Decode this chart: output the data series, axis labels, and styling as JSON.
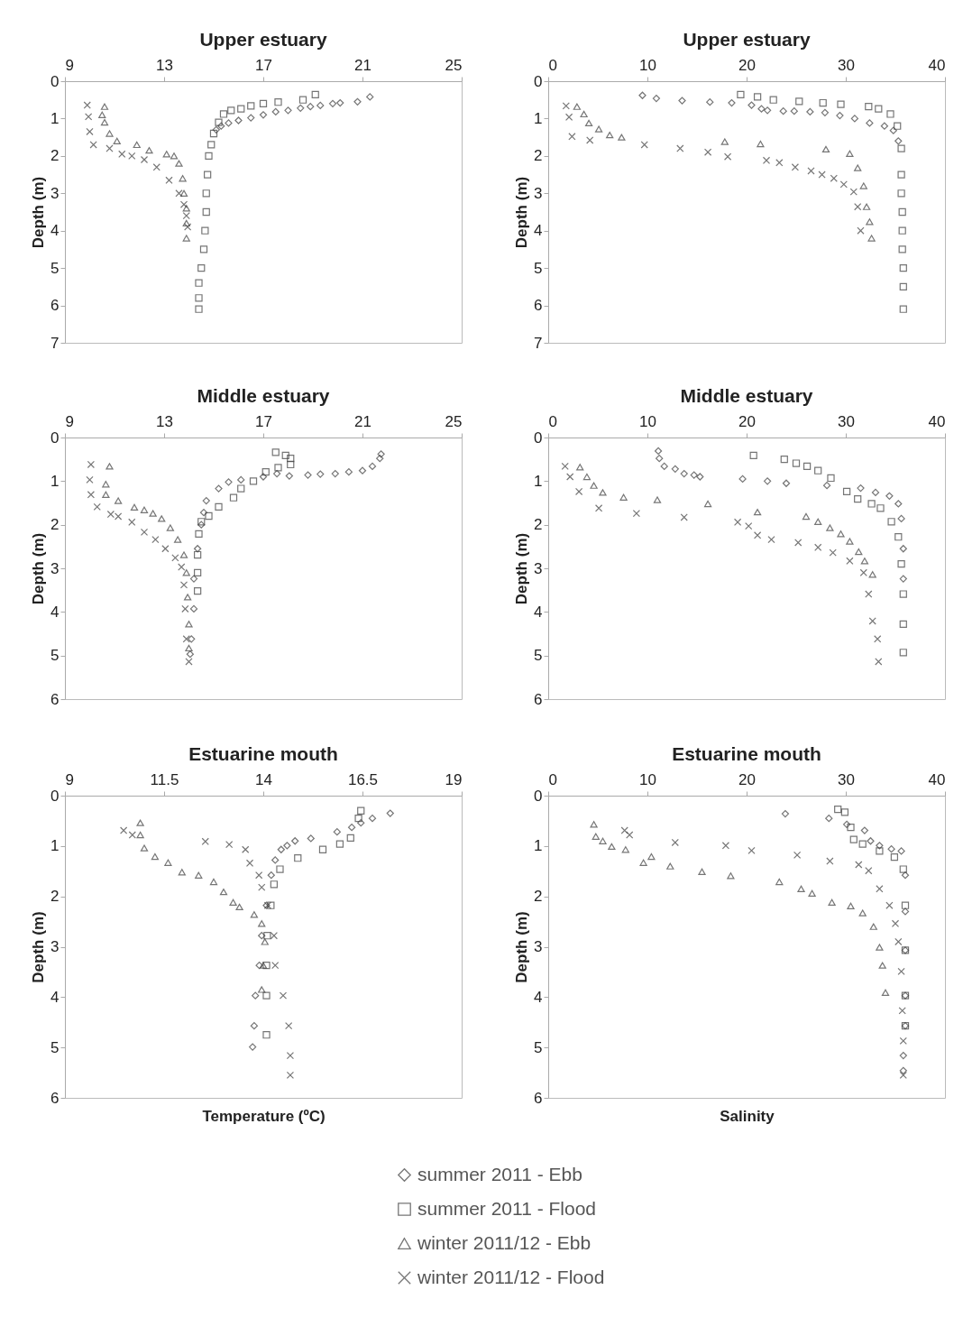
{
  "chart_data": [
    {
      "type": "scatter",
      "title": "Upper estuary",
      "ylabel": "Depth (m)",
      "xlim": [
        9,
        25
      ],
      "xticks": [
        9,
        13,
        17,
        21,
        25
      ],
      "ylim": [
        7,
        0
      ],
      "yticks": [
        0,
        1,
        2,
        3,
        4,
        5,
        6,
        7
      ],
      "series": [
        {
          "color": "#3c3c3c",
          "marker": "diamond",
          "x": [
            21.3,
            20.8,
            20.1,
            19.8,
            19.3,
            18.9,
            18.5,
            18.0,
            17.5,
            17.0,
            16.5,
            16.0,
            15.6,
            15.3,
            15.1
          ],
          "values": [
            0.42,
            0.55,
            0.58,
            0.6,
            0.65,
            0.68,
            0.72,
            0.78,
            0.82,
            0.9,
            0.98,
            1.05,
            1.12,
            1.2,
            1.3
          ]
        },
        {
          "color": "#3c3c3c",
          "marker": "square",
          "x": [
            19.1,
            18.6,
            17.6,
            17.0,
            16.5,
            16.1,
            15.7,
            15.4,
            15.2,
            15.0,
            14.9,
            14.8,
            14.75,
            14.7,
            14.7,
            14.65,
            14.6,
            14.5,
            14.4,
            14.4,
            14.4
          ],
          "values": [
            0.36,
            0.5,
            0.56,
            0.6,
            0.66,
            0.74,
            0.78,
            0.88,
            1.1,
            1.4,
            1.7,
            2.0,
            2.5,
            3.0,
            3.5,
            4.0,
            4.5,
            5.0,
            5.4,
            5.8,
            6.1
          ]
        },
        {
          "color": "#3c3c3c",
          "marker": "triangle",
          "x": [
            10.6,
            10.5,
            10.6,
            10.8,
            11.1,
            11.9,
            12.4,
            13.1,
            13.4,
            13.6,
            13.75,
            13.8,
            13.9,
            13.9,
            13.9
          ],
          "values": [
            0.68,
            0.9,
            1.1,
            1.4,
            1.6,
            1.7,
            1.85,
            1.95,
            2.0,
            2.2,
            2.6,
            3.0,
            3.4,
            3.8,
            4.2
          ]
        },
        {
          "color": "#3c3c3c",
          "marker": "cross",
          "x": [
            9.9,
            9.95,
            10.0,
            10.15,
            10.8,
            11.3,
            11.7,
            12.2,
            12.7,
            13.2,
            13.6,
            13.8,
            13.9,
            13.95
          ],
          "values": [
            0.64,
            0.95,
            1.35,
            1.7,
            1.8,
            1.95,
            2.0,
            2.1,
            2.3,
            2.65,
            3.0,
            3.3,
            3.6,
            3.9
          ]
        }
      ]
    },
    {
      "type": "scatter",
      "title": "Upper estuary",
      "ylabel": "Depth (m)",
      "xlim": [
        0,
        40
      ],
      "xticks": [
        0,
        10,
        20,
        30,
        40
      ],
      "ylim": [
        7,
        0
      ],
      "yticks": [
        0,
        1,
        2,
        3,
        4,
        5,
        6,
        7
      ],
      "series": [
        {
          "color": "#3c3c3c",
          "marker": "diamond",
          "x": [
            9.5,
            10.9,
            13.5,
            16.3,
            18.5,
            20.5,
            21.5,
            22.1,
            23.7,
            24.8,
            26.4,
            27.9,
            29.4,
            30.9,
            32.4,
            33.9,
            34.8,
            35.3
          ],
          "values": [
            0.38,
            0.46,
            0.52,
            0.56,
            0.58,
            0.64,
            0.74,
            0.78,
            0.8,
            0.8,
            0.82,
            0.84,
            0.92,
            1.0,
            1.12,
            1.2,
            1.32,
            1.6
          ]
        },
        {
          "color": "#3c3c3c",
          "marker": "square",
          "x": [
            19.4,
            21.1,
            22.7,
            25.3,
            27.7,
            29.5,
            32.3,
            33.3,
            34.5,
            35.2,
            35.6,
            35.6,
            35.6,
            35.7,
            35.7,
            35.7,
            35.8,
            35.8,
            35.8
          ],
          "values": [
            0.36,
            0.42,
            0.5,
            0.54,
            0.58,
            0.62,
            0.68,
            0.74,
            0.88,
            1.2,
            1.8,
            2.5,
            3.0,
            3.5,
            4.0,
            4.5,
            5.0,
            5.5,
            6.1
          ]
        },
        {
          "color": "#3c3c3c",
          "marker": "triangle",
          "x": [
            2.9,
            3.6,
            4.1,
            5.1,
            6.2,
            7.4,
            17.8,
            21.4,
            28.0,
            30.4,
            31.2,
            31.8,
            32.1,
            32.4,
            32.6
          ],
          "values": [
            0.68,
            0.88,
            1.12,
            1.28,
            1.44,
            1.5,
            1.62,
            1.68,
            1.82,
            1.94,
            2.32,
            2.8,
            3.36,
            3.76,
            4.2
          ]
        },
        {
          "color": "#3c3c3c",
          "marker": "cross",
          "x": [
            1.8,
            2.1,
            2.4,
            4.2,
            9.7,
            13.3,
            16.1,
            18.1,
            22.0,
            23.3,
            24.9,
            26.5,
            27.6,
            28.8,
            29.8,
            30.8,
            31.2,
            31.5
          ],
          "values": [
            0.66,
            0.96,
            1.48,
            1.58,
            1.7,
            1.8,
            1.9,
            2.02,
            2.12,
            2.18,
            2.3,
            2.4,
            2.5,
            2.6,
            2.76,
            2.96,
            3.36,
            4.0
          ]
        }
      ]
    },
    {
      "type": "scatter",
      "title": "Middle estuary",
      "ylabel": "Depth (m)",
      "xlim": [
        9,
        25
      ],
      "xticks": [
        9,
        13,
        17,
        21,
        25
      ],
      "ylim": [
        6,
        0
      ],
      "yticks": [
        0,
        1,
        2,
        3,
        4,
        5,
        6
      ],
      "series": [
        {
          "color": "#3c3c3c",
          "marker": "diamond",
          "x": [
            21.75,
            21.7,
            21.4,
            21.0,
            20.45,
            19.9,
            19.3,
            18.8,
            18.05,
            17.55,
            17.0,
            16.1,
            15.6,
            15.2,
            14.7,
            14.6,
            14.5,
            14.35,
            14.2,
            14.2,
            14.1,
            14.05
          ],
          "values": [
            0.38,
            0.48,
            0.66,
            0.76,
            0.79,
            0.83,
            0.84,
            0.86,
            0.88,
            0.83,
            0.9,
            0.97,
            1.02,
            1.17,
            1.45,
            1.72,
            2.0,
            2.55,
            3.24,
            3.93,
            4.62,
            4.97
          ]
        },
        {
          "color": "#3c3c3c",
          "marker": "square",
          "x": [
            17.5,
            17.9,
            18.1,
            18.1,
            17.6,
            17.1,
            16.6,
            16.1,
            15.8,
            15.2,
            14.8,
            14.5,
            14.4,
            14.35,
            14.35,
            14.35
          ],
          "values": [
            0.34,
            0.41,
            0.48,
            0.62,
            0.69,
            0.79,
            1.0,
            1.17,
            1.38,
            1.59,
            1.8,
            1.93,
            2.21,
            2.69,
            3.1,
            3.52
          ]
        },
        {
          "color": "#3c3c3c",
          "marker": "triangle",
          "x": [
            10.8,
            10.65,
            10.65,
            11.15,
            11.8,
            12.2,
            12.55,
            12.9,
            13.25,
            13.55,
            13.8,
            13.9,
            13.95,
            14.0,
            14.0
          ],
          "values": [
            0.66,
            1.07,
            1.31,
            1.45,
            1.6,
            1.66,
            1.74,
            1.86,
            2.07,
            2.34,
            2.69,
            3.1,
            3.66,
            4.28,
            4.83
          ]
        },
        {
          "color": "#3c3c3c",
          "marker": "cross",
          "x": [
            10.05,
            10.0,
            10.05,
            10.3,
            10.85,
            11.15,
            11.7,
            12.2,
            12.65,
            13.05,
            13.45,
            13.7,
            13.8,
            13.85,
            13.9,
            14.0
          ],
          "values": [
            0.62,
            0.97,
            1.31,
            1.59,
            1.76,
            1.81,
            1.94,
            2.17,
            2.34,
            2.55,
            2.76,
            2.97,
            3.38,
            3.93,
            4.62,
            5.14
          ]
        }
      ]
    },
    {
      "type": "scatter",
      "title": "Middle estuary",
      "ylabel": "Depth (m)",
      "xlim": [
        0,
        40
      ],
      "xticks": [
        0,
        10,
        20,
        30,
        40
      ],
      "ylim": [
        6,
        0
      ],
      "yticks": [
        0,
        1,
        2,
        3,
        4,
        5,
        6
      ],
      "series": [
        {
          "color": "#3c3c3c",
          "marker": "diamond",
          "x": [
            11.1,
            11.2,
            11.7,
            12.8,
            13.7,
            14.7,
            15.3,
            19.6,
            22.1,
            24.0,
            28.1,
            31.5,
            33.0,
            34.4,
            35.3,
            35.6,
            35.8,
            35.8
          ],
          "values": [
            0.31,
            0.48,
            0.66,
            0.72,
            0.83,
            0.86,
            0.9,
            0.95,
            1.0,
            1.05,
            1.1,
            1.16,
            1.26,
            1.34,
            1.52,
            1.86,
            2.55,
            3.24
          ]
        },
        {
          "color": "#3c3c3c",
          "marker": "square",
          "x": [
            20.7,
            23.8,
            25.0,
            26.1,
            27.2,
            28.5,
            30.1,
            31.2,
            32.6,
            33.5,
            34.6,
            35.3,
            35.6,
            35.8,
            35.8,
            35.8
          ],
          "values": [
            0.41,
            0.5,
            0.59,
            0.66,
            0.76,
            0.93,
            1.24,
            1.41,
            1.52,
            1.62,
            1.93,
            2.28,
            2.9,
            3.59,
            4.28,
            4.93
          ]
        },
        {
          "color": "#3c3c3c",
          "marker": "triangle",
          "x": [
            3.2,
            3.9,
            4.6,
            5.5,
            7.6,
            11.0,
            16.1,
            21.1,
            26.0,
            27.2,
            28.4,
            29.5,
            30.4,
            31.3,
            31.9,
            32.7
          ],
          "values": [
            0.68,
            0.9,
            1.1,
            1.26,
            1.37,
            1.43,
            1.52,
            1.71,
            1.81,
            1.93,
            2.07,
            2.21,
            2.38,
            2.62,
            2.83,
            3.14
          ]
        },
        {
          "color": "#3c3c3c",
          "marker": "cross",
          "x": [
            1.7,
            2.2,
            3.1,
            5.1,
            8.9,
            13.7,
            19.1,
            20.2,
            21.1,
            22.5,
            25.2,
            27.2,
            28.7,
            30.4,
            31.8,
            32.3,
            32.7,
            33.2,
            33.3
          ],
          "values": [
            0.66,
            0.9,
            1.24,
            1.62,
            1.74,
            1.83,
            1.94,
            2.03,
            2.24,
            2.34,
            2.41,
            2.52,
            2.64,
            2.83,
            3.1,
            3.59,
            4.21,
            4.62,
            5.14
          ]
        }
      ]
    },
    {
      "type": "scatter",
      "title": "Estuarine mouth",
      "xlabel": "Temperature (ºC)",
      "ylabel": "Depth (m)",
      "xlim": [
        9,
        19
      ],
      "xticks": [
        9,
        11.5,
        14,
        16.5,
        19
      ],
      "ylim": [
        6,
        0
      ],
      "yticks": [
        0,
        1,
        2,
        3,
        4,
        5,
        6
      ],
      "series": [
        {
          "color": "#3c3c3c",
          "marker": "diamond",
          "x": [
            17.2,
            16.75,
            16.46,
            16.23,
            15.86,
            15.2,
            14.8,
            14.6,
            14.45,
            14.3,
            14.2,
            14.08,
            13.96,
            13.9,
            13.8,
            13.77,
            13.73
          ],
          "values": [
            0.35,
            0.45,
            0.54,
            0.63,
            0.72,
            0.85,
            0.9,
            0.99,
            1.07,
            1.28,
            1.58,
            2.18,
            2.78,
            3.37,
            3.97,
            4.57,
            4.99
          ]
        },
        {
          "color": "#3c3c3c",
          "marker": "square",
          "x": [
            16.46,
            16.4,
            16.2,
            15.93,
            15.5,
            14.87,
            14.42,
            14.27,
            14.19,
            14.1,
            14.08,
            14.08,
            14.08
          ],
          "values": [
            0.3,
            0.45,
            0.84,
            0.96,
            1.07,
            1.24,
            1.46,
            1.76,
            2.18,
            2.78,
            3.37,
            3.97,
            4.75
          ]
        },
        {
          "color": "#3c3c3c",
          "marker": "triangle",
          "x": [
            10.9,
            10.9,
            11.0,
            11.27,
            11.6,
            11.95,
            12.37,
            12.75,
            13.0,
            13.24,
            13.4,
            13.77,
            13.96,
            14.04,
            14.0,
            13.96
          ],
          "values": [
            0.54,
            0.78,
            1.04,
            1.21,
            1.33,
            1.52,
            1.58,
            1.71,
            1.91,
            2.12,
            2.21,
            2.36,
            2.54,
            2.9,
            3.37,
            3.85
          ]
        },
        {
          "color": "#3c3c3c",
          "marker": "cross",
          "x": [
            10.48,
            10.7,
            12.54,
            13.14,
            13.55,
            13.66,
            13.89,
            13.96,
            14.11,
            14.27,
            14.3,
            14.5,
            14.64,
            14.68,
            14.68
          ],
          "values": [
            0.69,
            0.78,
            0.91,
            0.97,
            1.07,
            1.34,
            1.58,
            1.82,
            2.18,
            2.78,
            3.37,
            3.97,
            4.57,
            5.16,
            5.55
          ]
        }
      ]
    },
    {
      "type": "scatter",
      "title": "Estuarine mouth",
      "xlabel": "Salinity",
      "ylabel": "Depth (m)",
      "xlim": [
        0,
        40
      ],
      "xticks": [
        0,
        10,
        20,
        30,
        40
      ],
      "ylim": [
        6,
        0
      ],
      "yticks": [
        0,
        1,
        2,
        3,
        4,
        5,
        6
      ],
      "legend": "bottom",
      "series": [
        {
          "name": "summer 2011 - Ebb",
          "color": "#3c3c3c",
          "marker": "diamond",
          "x": [
            23.9,
            28.3,
            30.1,
            31.9,
            32.5,
            33.4,
            34.6,
            35.6,
            36.0,
            36.0,
            36.0,
            36.0,
            36.0,
            35.8,
            35.8
          ],
          "values": [
            0.36,
            0.45,
            0.57,
            0.69,
            0.9,
            0.99,
            1.06,
            1.1,
            1.58,
            2.3,
            3.07,
            3.97,
            4.57,
            5.16,
            5.46
          ]
        },
        {
          "name": "summer 2011 - Flood",
          "color": "#3c3c3c",
          "marker": "square",
          "x": [
            29.2,
            29.9,
            30.5,
            30.8,
            31.7,
            33.4,
            34.9,
            35.8,
            36.0,
            36.0,
            36.0,
            36.0
          ],
          "values": [
            0.27,
            0.33,
            0.63,
            0.87,
            0.96,
            1.1,
            1.22,
            1.46,
            2.18,
            3.07,
            3.97,
            4.57
          ]
        },
        {
          "name": "winter 2011/12 - Ebb",
          "color": "#3c3c3c",
          "marker": "triangle",
          "x": [
            4.6,
            4.8,
            5.5,
            6.4,
            7.8,
            9.6,
            10.4,
            12.3,
            15.5,
            18.4,
            23.3,
            25.5,
            26.6,
            28.6,
            30.5,
            31.7,
            32.8,
            33.4,
            33.7,
            34.0
          ],
          "values": [
            0.57,
            0.81,
            0.9,
            1.01,
            1.07,
            1.33,
            1.21,
            1.4,
            1.51,
            1.59,
            1.71,
            1.85,
            1.94,
            2.12,
            2.19,
            2.33,
            2.6,
            3.01,
            3.37,
            3.91
          ]
        },
        {
          "name": "winter 2011/12 - Flood",
          "color": "#3c3c3c",
          "marker": "cross",
          "x": [
            7.7,
            8.2,
            12.8,
            17.9,
            20.5,
            25.1,
            28.4,
            31.3,
            32.3,
            33.4,
            34.4,
            35.0,
            35.3,
            35.6,
            35.7,
            35.8,
            35.8
          ],
          "values": [
            0.69,
            0.78,
            0.93,
            0.99,
            1.09,
            1.18,
            1.3,
            1.37,
            1.49,
            1.85,
            2.18,
            2.54,
            2.9,
            3.49,
            4.27,
            4.87,
            5.55
          ]
        }
      ]
    }
  ]
}
